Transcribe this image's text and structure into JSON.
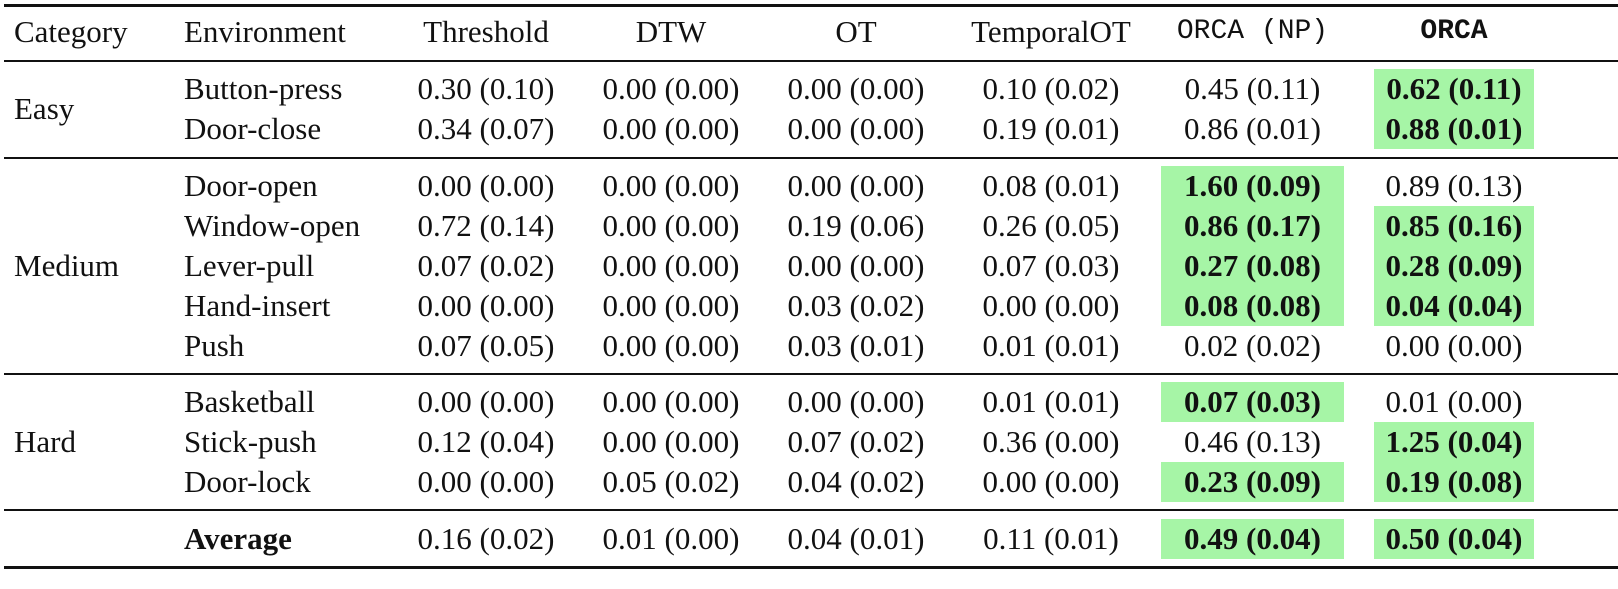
{
  "colors": {
    "highlight": "#a6f5a6",
    "rule": "#111111"
  },
  "header": [
    "Category",
    "Environment",
    "Threshold",
    "DTW",
    "OT",
    "TemporalOT",
    "ORCA (NP)",
    "ORCA"
  ],
  "groups": [
    {
      "category": "Easy",
      "rows": [
        {
          "env": "Button-press",
          "cells": [
            "0.30 (0.10)",
            "0.00 (0.00)",
            "0.00 (0.00)",
            "0.10 (0.02)",
            "0.45 (0.11)",
            "0.62 (0.11)"
          ],
          "best": [
            false,
            false,
            false,
            false,
            false,
            true
          ]
        },
        {
          "env": "Door-close",
          "cells": [
            "0.34 (0.07)",
            "0.00 (0.00)",
            "0.00 (0.00)",
            "0.19 (0.01)",
            "0.86 (0.01)",
            "0.88 (0.01)"
          ],
          "best": [
            false,
            false,
            false,
            false,
            false,
            true
          ]
        }
      ]
    },
    {
      "category": "Medium",
      "rows": [
        {
          "env": "Door-open",
          "cells": [
            "0.00 (0.00)",
            "0.00 (0.00)",
            "0.00 (0.00)",
            "0.08 (0.01)",
            "1.60 (0.09)",
            "0.89 (0.13)"
          ],
          "best": [
            false,
            false,
            false,
            false,
            true,
            false
          ]
        },
        {
          "env": "Window-open",
          "cells": [
            "0.72 (0.14)",
            "0.00 (0.00)",
            "0.19 (0.06)",
            "0.26 (0.05)",
            "0.86 (0.17)",
            "0.85 (0.16)"
          ],
          "best": [
            false,
            false,
            false,
            false,
            true,
            true
          ]
        },
        {
          "env": "Lever-pull",
          "cells": [
            "0.07 (0.02)",
            "0.00 (0.00)",
            "0.00 (0.00)",
            "0.07 (0.03)",
            "0.27 (0.08)",
            "0.28 (0.09)"
          ],
          "best": [
            false,
            false,
            false,
            false,
            true,
            true
          ]
        },
        {
          "env": "Hand-insert",
          "cells": [
            "0.00 (0.00)",
            "0.00 (0.00)",
            "0.03 (0.02)",
            "0.00 (0.00)",
            "0.08 (0.08)",
            "0.04 (0.04)"
          ],
          "best": [
            false,
            false,
            false,
            false,
            true,
            true
          ]
        },
        {
          "env": "Push",
          "cells": [
            "0.07 (0.05)",
            "0.00 (0.00)",
            "0.03 (0.01)",
            "0.01 (0.01)",
            "0.02 (0.02)",
            "0.00 (0.00)"
          ],
          "best": [
            false,
            false,
            false,
            false,
            false,
            false
          ]
        }
      ]
    },
    {
      "category": "Hard",
      "rows": [
        {
          "env": "Basketball",
          "cells": [
            "0.00 (0.00)",
            "0.00 (0.00)",
            "0.00 (0.00)",
            "0.01 (0.01)",
            "0.07 (0.03)",
            "0.01 (0.00)"
          ],
          "best": [
            false,
            false,
            false,
            false,
            true,
            false
          ]
        },
        {
          "env": "Stick-push",
          "cells": [
            "0.12 (0.04)",
            "0.00 (0.00)",
            "0.07 (0.02)",
            "0.36 (0.00)",
            "0.46 (0.13)",
            "1.25 (0.04)"
          ],
          "best": [
            false,
            false,
            false,
            false,
            false,
            true
          ]
        },
        {
          "env": "Door-lock",
          "cells": [
            "0.00 (0.00)",
            "0.05 (0.02)",
            "0.04 (0.02)",
            "0.00 (0.00)",
            "0.23 (0.09)",
            "0.19 (0.08)"
          ],
          "best": [
            false,
            false,
            false,
            false,
            true,
            true
          ]
        }
      ]
    }
  ],
  "average": {
    "label": "Average",
    "cells": [
      "0.16 (0.02)",
      "0.01 (0.00)",
      "0.04 (0.01)",
      "0.11 (0.01)",
      "0.49 (0.04)",
      "0.50 (0.04)"
    ],
    "best": [
      false,
      false,
      false,
      false,
      true,
      true
    ]
  }
}
